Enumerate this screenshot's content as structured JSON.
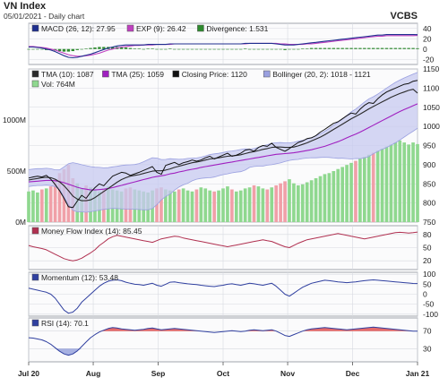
{
  "header": {
    "title": "VN Index",
    "subtitle": "05/01/2021 - Daily chart",
    "source": "VCBS"
  },
  "colors": {
    "panel_bg": "#fbfbfc",
    "grid": "#d7dae0",
    "macd": "#1f2f8f",
    "exp": "#c040c0",
    "divergence": "#2e8b2e",
    "tma10": "#2a2a2a",
    "tma25": "#a020c0",
    "close": "#111111",
    "bollinger_fill": "#c7c9f0",
    "bollinger_line": "#9aa0e0",
    "vol_up": "#8fd88f",
    "vol_down": "#f0a0a8",
    "mfi": "#b03050",
    "momentum": "#3040a0",
    "rsi": "#3040a0",
    "rsi_fill": "#e05050"
  },
  "panels": {
    "macd": {
      "legend": [
        {
          "label": "MACD (26, 12): 27.95",
          "color": "#1f2f8f"
        },
        {
          "label": "EXP (9): 26.42",
          "color": "#c040c0"
        },
        {
          "label": "Divergence: 1.531",
          "color": "#2e8b2e"
        }
      ],
      "right_ticks": [
        "40",
        "20",
        "0",
        "-20"
      ]
    },
    "price": {
      "legend_row1": [
        {
          "label": "TMA (10): 1087",
          "color": "#2a2a2a"
        },
        {
          "label": "TMA (25): 1059",
          "color": "#a020c0"
        },
        {
          "label": "Closing Price: 1120",
          "color": "#111111"
        },
        {
          "label": "Bollinger (20, 2): 1018 - 1121",
          "color": "#9aa0e0"
        }
      ],
      "legend_row2": [
        {
          "label": "Vol: 764M",
          "color": "#8fd88f"
        }
      ],
      "right_ticks": [
        "1150",
        "1100",
        "1050",
        "1000",
        "950",
        "900",
        "850",
        "800",
        "750"
      ],
      "left_ticks": [
        "1000M",
        "500M",
        "0M"
      ]
    },
    "mfi": {
      "legend": [
        {
          "label": "Money Flow Index (14): 85.45",
          "color": "#b03050"
        }
      ],
      "right_ticks": [
        "80",
        "50",
        "20"
      ]
    },
    "momentum": {
      "legend": [
        {
          "label": "Momentum (12): 53.48",
          "color": "#3040a0"
        }
      ],
      "right_ticks": [
        "100",
        "50",
        "0",
        "-50",
        "-100"
      ]
    },
    "rsi": {
      "legend": [
        {
          "label": "RSI (14): 70.1",
          "color": "#3040a0"
        }
      ],
      "right_ticks": [
        "70",
        "30"
      ]
    }
  },
  "x_ticks": [
    "Jul 20",
    "Aug",
    "Sep",
    "Oct",
    "Nov",
    "Dec",
    "Jan 21"
  ],
  "chart_data": {
    "type": "line",
    "x_range": [
      "Jul 2020",
      "Jan 2021"
    ],
    "series": [
      {
        "name": "Closing Price",
        "values": [
          865,
          868,
          870,
          868,
          872,
          862,
          848,
          832,
          812,
          790,
          788,
          805,
          820,
          812,
          828,
          840,
          850,
          845,
          858,
          870,
          875,
          880,
          878,
          872,
          876,
          880,
          885,
          890,
          895,
          880,
          875,
          898,
          902,
          906,
          900,
          905,
          908,
          912,
          909,
          912,
          918,
          922,
          915,
          920,
          925,
          930,
          922,
          925,
          930,
          938,
          940,
          935,
          945,
          950,
          948,
          956,
          945,
          940,
          935,
          942,
          950,
          958,
          962,
          968,
          970,
          976,
          985,
          992,
          1000,
          1008,
          1012,
          1020,
          1028,
          1035,
          1032,
          1045,
          1055,
          1062,
          1060,
          1072,
          1082,
          1090,
          1095,
          1100,
          1105,
          1110,
          1112,
          1118,
          1120
        ]
      },
      {
        "name": "TMA (10)",
        "values": [
          860,
          862,
          864,
          866,
          867,
          866,
          862,
          855,
          845,
          832,
          818,
          810,
          806,
          806,
          808,
          814,
          822,
          830,
          838,
          846,
          854,
          861,
          866,
          870,
          872,
          874,
          877,
          880,
          883,
          884,
          884,
          886,
          889,
          893,
          896,
          899,
          902,
          905,
          907,
          909,
          912,
          915,
          916,
          918,
          920,
          922,
          923,
          924,
          926,
          929,
          932,
          934,
          937,
          940,
          942,
          945,
          946,
          946,
          945,
          945,
          946,
          949,
          953,
          957,
          962,
          967,
          972,
          978,
          985,
          992,
          999,
          1006,
          1013,
          1020,
          1026,
          1032,
          1039,
          1046,
          1052,
          1058,
          1064,
          1070,
          1076,
          1081,
          1086,
          1090,
          1094,
          1097,
          1087
        ]
      },
      {
        "name": "TMA (25)",
        "values": [
          855,
          856,
          857,
          858,
          859,
          859,
          858,
          856,
          853,
          849,
          845,
          841,
          838,
          836,
          834,
          834,
          835,
          836,
          838,
          840,
          843,
          846,
          849,
          852,
          855,
          858,
          861,
          864,
          867,
          869,
          871,
          873,
          876,
          878,
          881,
          883,
          886,
          888,
          890,
          893,
          895,
          897,
          899,
          901,
          903,
          905,
          907,
          909,
          911,
          913,
          915,
          917,
          919,
          921,
          923,
          925,
          927,
          928,
          929,
          930,
          931,
          933,
          935,
          937,
          939,
          942,
          945,
          948,
          952,
          956,
          960,
          965,
          970,
          975,
          980,
          985,
          991,
          997,
          1003,
          1009,
          1015,
          1021,
          1027,
          1033,
          1039,
          1044,
          1049,
          1054,
          1059
        ]
      },
      {
        "name": "Volume (M)",
        "values": [
          300,
          310,
          290,
          320,
          330,
          350,
          420,
          480,
          520,
          560,
          430,
          380,
          330,
          360,
          340,
          310,
          300,
          330,
          350,
          320,
          310,
          300,
          330,
          340,
          320,
          310,
          300,
          290,
          310,
          330,
          340,
          320,
          310,
          300,
          320,
          330,
          310,
          300,
          320,
          340,
          330,
          310,
          300,
          310,
          330,
          350,
          320,
          300,
          310,
          330,
          340,
          360,
          350,
          330,
          320,
          340,
          360,
          380,
          400,
          420,
          380,
          360,
          370,
          390,
          410,
          430,
          450,
          470,
          480,
          500,
          520,
          540,
          560,
          580,
          600,
          620,
          640,
          660,
          680,
          700,
          720,
          740,
          760,
          780,
          800,
          780,
          760,
          780,
          764
        ]
      },
      {
        "name": "Money Flow Index (14)",
        "values": [
          55,
          52,
          50,
          48,
          45,
          40,
          35,
          30,
          25,
          22,
          20,
          22,
          26,
          32,
          38,
          45,
          55,
          62,
          70,
          75,
          78,
          76,
          74,
          72,
          70,
          68,
          66,
          64,
          62,
          66,
          70,
          72,
          74,
          76,
          75,
          72,
          70,
          68,
          66,
          64,
          62,
          60,
          58,
          56,
          54,
          52,
          54,
          56,
          58,
          60,
          62,
          64,
          66,
          68,
          66,
          64,
          60,
          56,
          52,
          50,
          55,
          60,
          64,
          68,
          70,
          72,
          74,
          76,
          78,
          80,
          82,
          80,
          78,
          76,
          74,
          72,
          70,
          72,
          74,
          76,
          78,
          80,
          82,
          84,
          85,
          84,
          83,
          84,
          85.45
        ]
      },
      {
        "name": "Momentum (12)",
        "values": [
          30,
          25,
          20,
          15,
          10,
          0,
          -20,
          -50,
          -80,
          -95,
          -90,
          -70,
          -40,
          -20,
          0,
          20,
          40,
          55,
          65,
          70,
          72,
          68,
          60,
          55,
          50,
          48,
          45,
          50,
          55,
          45,
          40,
          50,
          60,
          62,
          58,
          55,
          52,
          50,
          48,
          45,
          42,
          40,
          38,
          42,
          45,
          50,
          52,
          48,
          45,
          50,
          55,
          52,
          48,
          45,
          50,
          55,
          40,
          20,
          0,
          -10,
          5,
          20,
          35,
          45,
          55,
          60,
          65,
          70,
          68,
          65,
          62,
          60,
          58,
          60,
          62,
          65,
          68,
          70,
          72,
          70,
          68,
          66,
          64,
          62,
          60,
          58,
          56,
          54,
          53.48
        ]
      },
      {
        "name": "RSI (14)",
        "values": [
          55,
          54,
          52,
          50,
          46,
          40,
          32,
          24,
          18,
          15,
          18,
          25,
          35,
          45,
          55,
          62,
          68,
          72,
          76,
          78,
          77,
          75,
          74,
          73,
          72,
          73,
          74,
          76,
          77,
          75,
          73,
          74,
          75,
          76,
          75,
          74,
          73,
          72,
          71,
          70,
          69,
          68,
          67,
          68,
          69,
          70,
          71,
          70,
          69,
          70,
          72,
          73,
          72,
          71,
          72,
          73,
          70,
          65,
          60,
          58,
          62,
          66,
          70,
          73,
          75,
          76,
          77,
          78,
          77,
          76,
          75,
          74,
          73,
          74,
          75,
          76,
          77,
          78,
          79,
          78,
          77,
          76,
          75,
          74,
          73,
          72,
          71,
          70,
          70.1
        ]
      },
      {
        "name": "MACD (26, 12)",
        "values": [
          4,
          4,
          3,
          2,
          0,
          -2,
          -5,
          -9,
          -13,
          -16,
          -17,
          -16,
          -14,
          -12,
          -10,
          -7,
          -4,
          -1,
          2,
          4,
          6,
          7,
          8,
          8,
          8,
          8,
          8,
          9,
          9,
          9,
          9,
          9,
          10,
          10,
          10,
          10,
          10,
          10,
          10,
          10,
          10,
          10,
          10,
          10,
          10,
          10,
          10,
          10,
          10,
          11,
          11,
          11,
          11,
          11,
          11,
          11,
          10,
          9,
          8,
          8,
          8,
          9,
          10,
          11,
          12,
          13,
          14,
          15,
          16,
          17,
          18,
          19,
          20,
          21,
          22,
          23,
          24,
          25,
          26,
          27,
          27,
          28,
          28,
          28,
          28,
          28,
          28,
          28,
          27.95
        ]
      },
      {
        "name": "EXP (9)",
        "values": [
          5,
          5,
          4,
          3,
          2,
          0,
          -2,
          -5,
          -8,
          -11,
          -13,
          -14,
          -14,
          -13,
          -12,
          -10,
          -8,
          -5,
          -2,
          0,
          2,
          4,
          5,
          6,
          7,
          7,
          8,
          8,
          8,
          9,
          9,
          9,
          9,
          10,
          10,
          10,
          10,
          10,
          10,
          10,
          10,
          10,
          10,
          10,
          10,
          10,
          10,
          10,
          10,
          10,
          11,
          11,
          11,
          11,
          11,
          11,
          11,
          10,
          10,
          9,
          9,
          9,
          9,
          10,
          10,
          11,
          12,
          13,
          14,
          15,
          16,
          17,
          18,
          19,
          20,
          21,
          22,
          23,
          24,
          25,
          25,
          26,
          26,
          26,
          26,
          26,
          26,
          26,
          26.42
        ]
      },
      {
        "name": "Divergence",
        "values": [
          -1,
          -1,
          -1,
          -1,
          -2,
          -2,
          -3,
          -4,
          -5,
          -5,
          -4,
          -2,
          0,
          1,
          2,
          3,
          4,
          4,
          4,
          4,
          4,
          3,
          3,
          2,
          1,
          1,
          0,
          1,
          1,
          0,
          0,
          0,
          1,
          0,
          0,
          0,
          0,
          0,
          0,
          0,
          0,
          0,
          0,
          0,
          0,
          0,
          0,
          0,
          0,
          1,
          0,
          0,
          0,
          0,
          0,
          0,
          -1,
          -1,
          -2,
          -1,
          -1,
          0,
          1,
          1,
          2,
          2,
          2,
          2,
          2,
          2,
          2,
          2,
          2,
          2,
          2,
          2,
          2,
          2,
          2,
          2,
          2,
          2,
          2,
          2,
          2,
          2,
          2,
          2,
          1.531
        ]
      }
    ],
    "ylim_price": [
      750,
      1150
    ],
    "ylim_volume_M": [
      0,
      1500
    ],
    "ylim_macd": [
      -30,
      50
    ],
    "ylim_mfi": [
      0,
      100
    ],
    "ylim_momentum": [
      -110,
      110
    ],
    "ylim_rsi": [
      0,
      100
    ],
    "grid": true,
    "legend_placement": "top-left"
  }
}
